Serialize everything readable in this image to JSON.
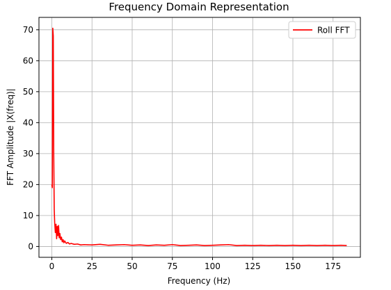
{
  "chart_data": {
    "type": "line",
    "title": "Frequency Domain Representation",
    "xlabel": "Frequency (Hz)",
    "ylabel": "FFT Amplitude |X(freq)|",
    "xlim": [
      -8,
      192
    ],
    "ylim": [
      -3.5,
      74
    ],
    "xticks": [
      0,
      25,
      50,
      75,
      100,
      125,
      150,
      175
    ],
    "yticks": [
      0,
      10,
      20,
      30,
      40,
      50,
      60,
      70
    ],
    "grid": true,
    "legend": {
      "placement": "top-right"
    },
    "series": [
      {
        "name": "Roll FFT",
        "color": "#ff0000",
        "points": [
          [
            0,
            20
          ],
          [
            0.3,
            19
          ],
          [
            0.6,
            70.5
          ],
          [
            0.9,
            68
          ],
          [
            1.2,
            30
          ],
          [
            1.5,
            12
          ],
          [
            1.8,
            7.5
          ],
          [
            2.2,
            4.5
          ],
          [
            2.6,
            7.2
          ],
          [
            3.0,
            2.5
          ],
          [
            3.4,
            6.5
          ],
          [
            3.8,
            3.5
          ],
          [
            4.2,
            6.8
          ],
          [
            4.6,
            2.8
          ],
          [
            5.0,
            4.2
          ],
          [
            5.5,
            2.2
          ],
          [
            6.0,
            3.0
          ],
          [
            6.5,
            1.5
          ],
          [
            7.0,
            2.2
          ],
          [
            7.5,
            1.2
          ],
          [
            8.0,
            1.8
          ],
          [
            9,
            1.0
          ],
          [
            10,
            1.3
          ],
          [
            11,
            0.8
          ],
          [
            12,
            1.0
          ],
          [
            14,
            0.7
          ],
          [
            16,
            0.8
          ],
          [
            18,
            0.5
          ],
          [
            20,
            0.6
          ],
          [
            25,
            0.5
          ],
          [
            30,
            0.7
          ],
          [
            35,
            0.4
          ],
          [
            40,
            0.5
          ],
          [
            45,
            0.6
          ],
          [
            50,
            0.4
          ],
          [
            55,
            0.5
          ],
          [
            60,
            0.3
          ],
          [
            65,
            0.5
          ],
          [
            70,
            0.4
          ],
          [
            75,
            0.6
          ],
          [
            80,
            0.3
          ],
          [
            85,
            0.4
          ],
          [
            90,
            0.5
          ],
          [
            95,
            0.3
          ],
          [
            100,
            0.4
          ],
          [
            105,
            0.5
          ],
          [
            110,
            0.6
          ],
          [
            115,
            0.3
          ],
          [
            120,
            0.4
          ],
          [
            125,
            0.3
          ],
          [
            130,
            0.4
          ],
          [
            135,
            0.3
          ],
          [
            140,
            0.4
          ],
          [
            145,
            0.3
          ],
          [
            150,
            0.4
          ],
          [
            155,
            0.3
          ],
          [
            160,
            0.4
          ],
          [
            165,
            0.3
          ],
          [
            170,
            0.4
          ],
          [
            175,
            0.3
          ],
          [
            180,
            0.4
          ],
          [
            183.5,
            0.3
          ]
        ]
      }
    ]
  }
}
